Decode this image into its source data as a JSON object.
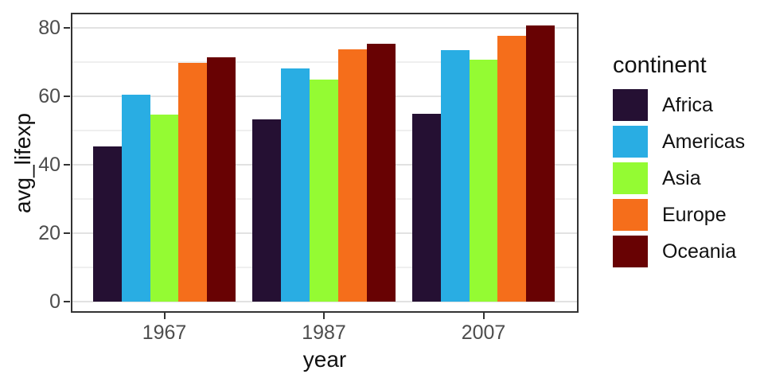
{
  "chart_data": {
    "type": "bar",
    "title": "",
    "xlabel": "year",
    "ylabel": "avg_lifexp",
    "categories": [
      "1967",
      "1987",
      "2007"
    ],
    "series": [
      {
        "name": "Africa",
        "color": "#251033",
        "values": [
          45.3,
          53.3,
          54.8
        ]
      },
      {
        "name": "Americas",
        "color": "#29ADE3",
        "values": [
          60.4,
          68.1,
          73.6
        ]
      },
      {
        "name": "Asia",
        "color": "#94FB33",
        "values": [
          54.7,
          64.9,
          70.7
        ]
      },
      {
        "name": "Europe",
        "color": "#F56E1B",
        "values": [
          69.7,
          73.7,
          77.6
        ]
      },
      {
        "name": "Oceania",
        "color": "#680203",
        "values": [
          71.3,
          75.4,
          80.7
        ]
      }
    ],
    "ylim": [
      0,
      84.4
    ],
    "y_major_ticks": [
      0,
      20,
      40,
      60,
      80
    ],
    "y_minor_ticks": [
      10,
      30,
      50,
      70
    ],
    "grid": true,
    "legend_title": "continent",
    "legend_position": "right",
    "style": {
      "panel_border_color": "#333333",
      "major_grid_color": "#e2e2e2",
      "minor_grid_color": "#efefef",
      "tick_text_color": "#4d4d4d",
      "title_text_color": "#111111",
      "background": "#ffffff"
    }
  }
}
